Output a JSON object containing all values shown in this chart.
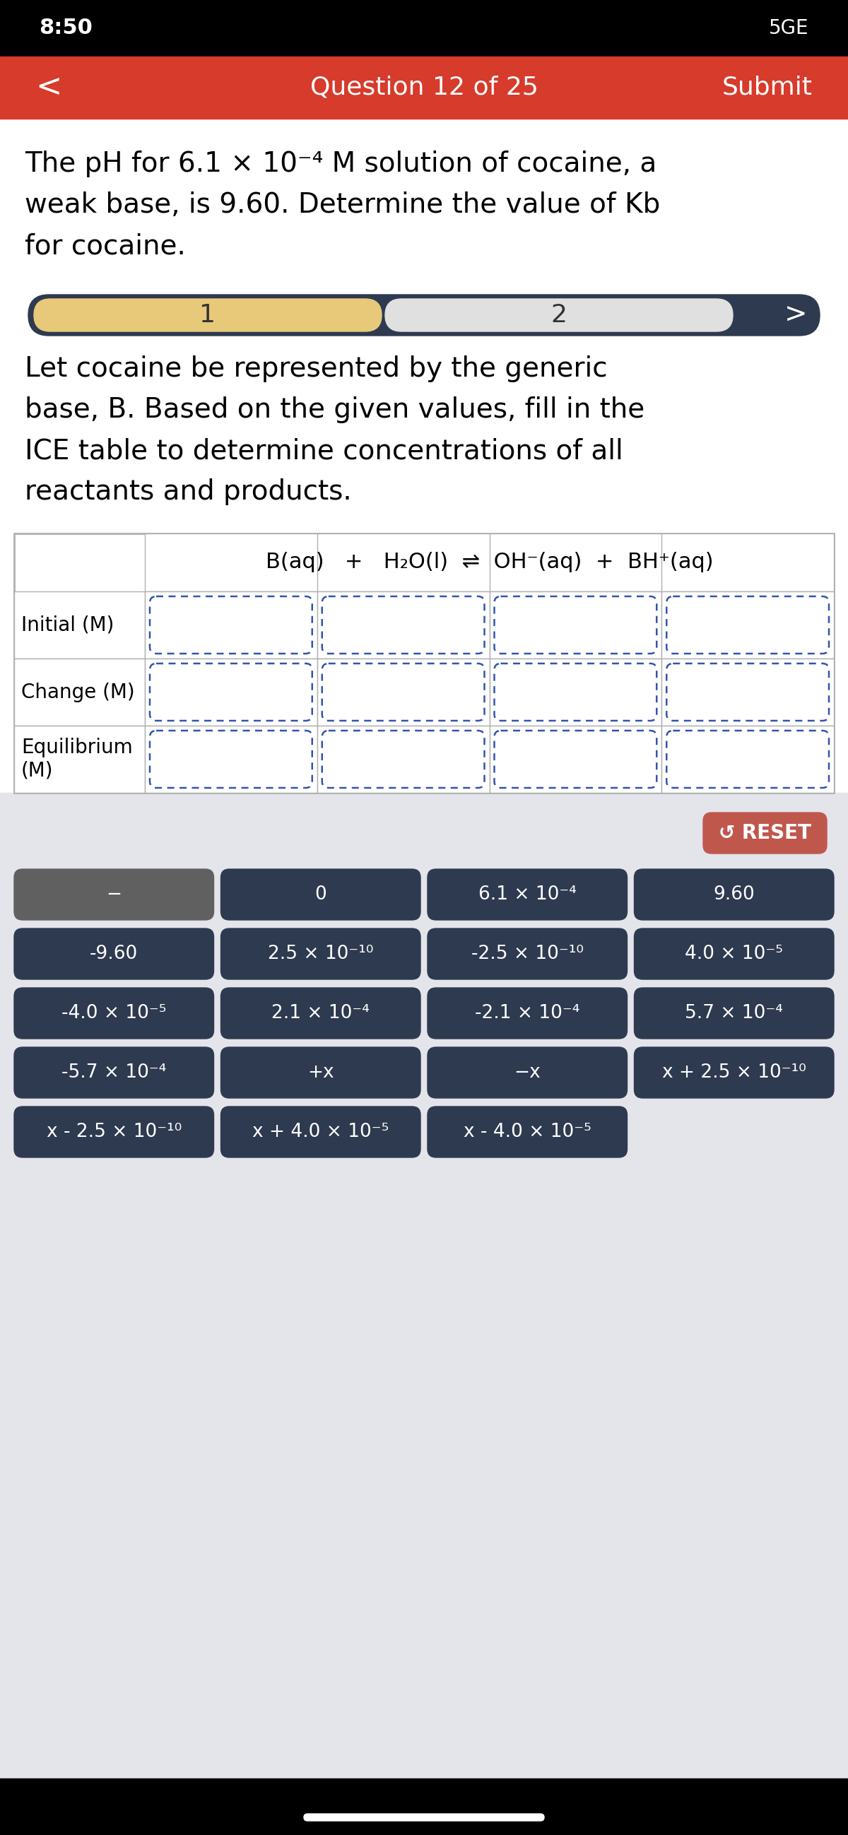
{
  "status_bar_time": "8:50",
  "status_bar_signal": "5GE",
  "nav_bar_text": "Question 12 of 25",
  "nav_bar_submit": "Submit",
  "nav_bar_color": "#d63b2b",
  "question_text_line1": "The pH for 6.1 × 10⁻⁴ M solution of cocaine, a",
  "question_text_line2": "weak base, is 9.60. Determine the value of Kb",
  "question_text_line3": "for cocaine.",
  "step_label1": "1",
  "step_label2": "2",
  "step_bar_bg": "#2e3a50",
  "step1_color": "#e8c97a",
  "step2_color": "#e0e0e0",
  "instruction_lines": [
    "Let cocaine be represented by the generic",
    "base, B. Based on the given values, fill in the",
    "ICE table to determine concentrations of all",
    "reactants and products."
  ],
  "equation": "B(aq)   +   H₂O(l)  ⇌  OH⁻(aq)  +  BH⁺(aq)",
  "row_labels": [
    "Initial (M)",
    "Change (M)",
    "Equilibrium\n(M)"
  ],
  "reset_btn_color": "#c0574d",
  "reset_btn_text": "↺ RESET",
  "bg_color": "#e4e4eb",
  "button_gray": "#606060",
  "button_dark": "#2e3a50",
  "buttons": [
    [
      "−",
      "0",
      "6.1 × 10⁻⁴",
      "9.60"
    ],
    [
      "-9.60",
      "2.5 × 10⁻¹⁰",
      "-2.5 × 10⁻¹⁰",
      "4.0 × 10⁻⁵"
    ],
    [
      "-4.0 × 10⁻⁵",
      "2.1 × 10⁻⁴",
      "-2.1 × 10⁻⁴",
      "5.7 × 10⁻⁴"
    ],
    [
      "-5.7 × 10⁻⁴",
      "+x",
      "−x",
      "x + 2.5 × 10⁻¹⁰"
    ],
    [
      "x - 2.5 × 10⁻¹⁰",
      "x + 4.0 × 10⁻⁵",
      "x - 4.0 × 10⁻⁵",
      ""
    ]
  ],
  "btn_colors": [
    [
      "#606060",
      "#2e3a50",
      "#2e3a50",
      "#2e3a50"
    ],
    [
      "#2e3a50",
      "#2e3a50",
      "#2e3a50",
      "#2e3a50"
    ],
    [
      "#2e3a50",
      "#2e3a50",
      "#2e3a50",
      "#2e3a50"
    ],
    [
      "#2e3a50",
      "#2e3a50",
      "#2e3a50",
      "#2e3a50"
    ],
    [
      "#2e3a50",
      "#2e3a50",
      "#2e3a50",
      "none"
    ]
  ]
}
